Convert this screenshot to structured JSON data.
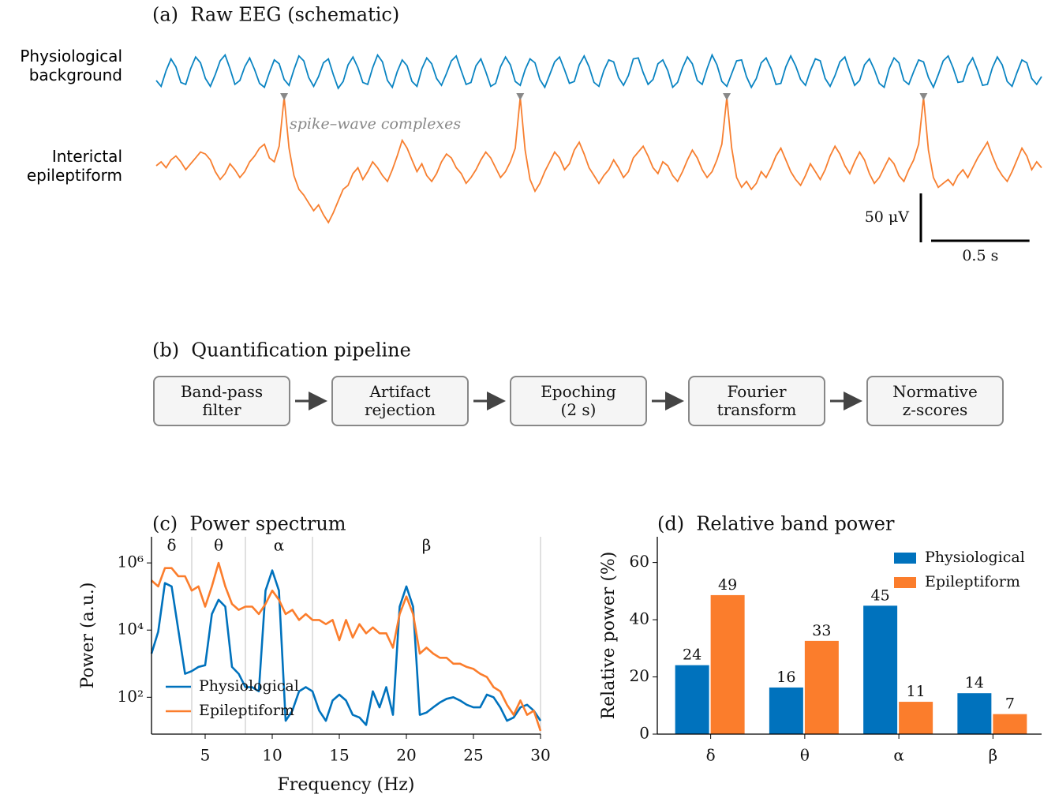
{
  "chart_data": [
    {
      "type": "trace",
      "title": "(a)  Raw EEG (schematic)",
      "x": [
        0,
        0.025,
        0.05,
        0.075,
        0.1,
        0.125,
        0.15,
        0.175,
        0.2,
        0.225,
        0.25,
        0.275,
        0.3,
        0.325,
        0.35,
        0.375,
        0.4,
        0.425,
        0.45,
        0.475,
        0.5,
        0.525,
        0.55,
        0.575,
        0.6,
        0.625,
        0.65,
        0.675,
        0.7,
        0.725,
        0.75,
        0.775,
        0.8,
        0.825,
        0.85,
        0.875,
        0.9,
        0.925,
        0.95,
        0.975,
        1,
        1.025,
        1.05,
        1.075,
        1.1,
        1.125,
        1.15,
        1.175,
        1.2,
        1.225,
        1.25,
        1.275,
        1.3,
        1.325,
        1.35,
        1.375,
        1.4,
        1.425,
        1.45,
        1.475,
        1.5,
        1.525,
        1.55,
        1.575,
        1.6,
        1.625,
        1.65,
        1.675,
        1.7,
        1.725,
        1.75,
        1.775,
        1.8,
        1.825,
        1.85,
        1.875,
        1.9,
        1.925,
        1.95,
        1.975,
        2,
        2.025,
        2.05,
        2.075,
        2.1,
        2.125,
        2.15,
        2.175,
        2.2,
        2.225,
        2.25,
        2.275,
        2.3,
        2.325,
        2.35,
        2.375,
        2.4,
        2.425,
        2.45,
        2.475,
        2.5,
        2.525,
        2.55,
        2.575,
        2.6,
        2.625,
        2.65,
        2.675,
        2.7,
        2.725,
        2.75,
        2.775,
        2.8,
        2.825,
        2.85,
        2.875,
        2.9,
        2.925,
        2.95,
        2.975,
        3,
        3.025,
        3.05,
        3.075,
        3.1,
        3.125,
        3.15,
        3.175,
        3.2,
        3.225,
        3.25,
        3.275,
        3.3,
        3.325,
        3.35,
        3.375,
        3.4,
        3.425,
        3.45,
        3.475,
        3.5,
        3.525,
        3.55,
        3.575,
        3.6,
        3.625,
        3.65,
        3.675,
        3.7,
        3.725,
        3.75,
        3.775,
        3.8,
        3.825,
        3.85,
        3.875,
        3.9,
        3.925,
        3.95,
        3.975,
        4,
        4.025,
        4.05,
        4.075,
        4.1,
        4.125,
        4.15,
        4.175,
        4.2,
        4.225,
        4.25,
        4.275,
        4.3,
        4.325,
        4.35,
        4.375,
        4.4,
        4.425,
        4.45,
        4.475,
        4.5
      ],
      "series": [
        {
          "name": "Physiological background",
          "color": "#0a84c2",
          "values": [
            -8,
            -14,
            2,
            14,
            6,
            -10,
            -12,
            4,
            16,
            10,
            -6,
            -14,
            -2,
            12,
            18,
            4,
            -12,
            -8,
            6,
            15,
            3,
            -11,
            -15,
            0,
            13,
            9,
            -7,
            -13,
            3,
            17,
            12,
            -5,
            -14,
            -4,
            10,
            14,
            -2,
            -16,
            -9,
            8,
            16,
            5,
            -10,
            -12,
            5,
            18,
            11,
            -8,
            -15,
            1,
            13,
            7,
            -9,
            -14,
            4,
            15,
            9,
            -6,
            -13,
            -1,
            12,
            17,
            2,
            -12,
            -10,
            7,
            14,
            1,
            -14,
            -11,
            6,
            16,
            8,
            -9,
            -13,
            3,
            14,
            10,
            -7,
            -15,
            -2,
            11,
            16,
            3,
            -11,
            -9,
            8,
            17,
            6,
            -10,
            -14,
            2,
            13,
            11,
            -5,
            -13,
            -3,
            14,
            15,
            0,
            -12,
            -7,
            9,
            13,
            2,
            -15,
            -10,
            5,
            16,
            9,
            -8,
            -12,
            4,
            18,
            8,
            -9,
            -14,
            -1,
            12,
            13,
            -4,
            -15,
            -6,
            10,
            15,
            4,
            -12,
            -11,
            6,
            17,
            7,
            -7,
            -13,
            2,
            14,
            12,
            -6,
            -14,
            -3,
            11,
            16,
            1,
            -13,
            -8,
            8,
            14,
            3,
            -11,
            -15,
            4,
            15,
            10,
            -8,
            -12,
            1,
            13,
            11,
            -5,
            -15,
            -2,
            12,
            17,
            5,
            -10,
            -9,
            7,
            15,
            2,
            -13,
            -12,
            5,
            16,
            8,
            -9,
            -14,
            0,
            13,
            10,
            -6,
            -12,
            -4
          ]
        },
        {
          "name": "Interictal epileptiform",
          "color": "#f77f30",
          "values": [
            0,
            4,
            -2,
            6,
            10,
            4,
            -4,
            2,
            8,
            14,
            12,
            6,
            -6,
            -14,
            -8,
            2,
            -4,
            -12,
            -6,
            4,
            10,
            18,
            22,
            8,
            4,
            20,
            70,
            18,
            -10,
            -24,
            -30,
            -38,
            -46,
            -40,
            -50,
            -58,
            -48,
            -36,
            -24,
            -20,
            -8,
            -2,
            -14,
            -6,
            4,
            -2,
            -10,
            -16,
            -4,
            10,
            26,
            18,
            6,
            -6,
            2,
            -10,
            -16,
            -8,
            4,
            12,
            8,
            -2,
            -8,
            -18,
            -12,
            -4,
            6,
            14,
            8,
            -2,
            -12,
            -6,
            4,
            18,
            70,
            16,
            -14,
            -26,
            -18,
            -6,
            4,
            14,
            8,
            -4,
            2,
            16,
            24,
            12,
            -2,
            -10,
            -18,
            -10,
            -4,
            6,
            -2,
            -12,
            -6,
            8,
            14,
            20,
            10,
            -2,
            -8,
            4,
            0,
            -10,
            -16,
            -6,
            6,
            16,
            8,
            -4,
            -12,
            -6,
            6,
            22,
            70,
            18,
            -12,
            -22,
            -16,
            -24,
            -18,
            -6,
            -12,
            -2,
            10,
            18,
            6,
            -6,
            -14,
            -20,
            -10,
            2,
            -6,
            -14,
            -4,
            10,
            20,
            12,
            0,
            -8,
            4,
            14,
            6,
            -8,
            -18,
            -12,
            -2,
            8,
            2,
            -10,
            -16,
            -4,
            6,
            22,
            70,
            16,
            -12,
            -22,
            -18,
            -14,
            -20,
            -10,
            -4,
            -12,
            -2,
            8,
            16,
            24,
            10,
            -2,
            -10,
            -16,
            -6,
            6,
            18,
            10,
            -4,
            4,
            -2
          ]
        }
      ],
      "markers_x": [
        0.65,
        1.85,
        2.9,
        3.9
      ],
      "annotation": "spike–wave complexes",
      "scalebar": {
        "y": {
          "value": 50,
          "label": "50 μV"
        },
        "x": {
          "value": 0.5,
          "label": "0.5 s"
        }
      }
    },
    {
      "type": "line",
      "title": "(c)  Power spectrum",
      "xlabel": "Frequency (Hz)",
      "ylabel": "Power (a.u.)",
      "x": [
        1,
        1.5,
        2,
        2.5,
        3,
        3.5,
        4,
        4.5,
        5,
        5.5,
        6,
        6.5,
        7,
        7.5,
        8,
        8.5,
        9,
        9.5,
        10,
        10.5,
        11,
        11.5,
        12,
        12.5,
        13,
        13.5,
        14,
        14.5,
        15,
        15.5,
        16,
        16.5,
        17,
        17.5,
        18,
        18.5,
        19,
        19.5,
        20,
        20.5,
        21,
        21.5,
        22,
        22.5,
        23,
        23.5,
        24,
        24.5,
        25,
        25.5,
        26,
        26.5,
        27,
        27.5,
        28,
        28.5,
        29,
        29.5,
        30
      ],
      "series": [
        {
          "name": "Physiological",
          "color": "#0072bd",
          "values": [
            2000,
            9000,
            250000,
            200000,
            10000,
            500,
            600,
            800,
            900,
            30000,
            80000,
            50000,
            800,
            500,
            200,
            200,
            150,
            150000,
            600000,
            150000,
            20,
            40,
            150,
            200,
            150,
            40,
            20,
            80,
            120,
            80,
            30,
            25,
            15,
            150,
            50,
            200,
            30,
            50000,
            200000,
            50000,
            30,
            35,
            50,
            70,
            90,
            100,
            80,
            60,
            50,
            50,
            120,
            100,
            50,
            20,
            25,
            50,
            60,
            40,
            20
          ]
        },
        {
          "name": "Epileptiform",
          "color": "#fb7d2c",
          "values": [
            300000,
            200000,
            700000,
            700000,
            400000,
            400000,
            150000,
            200000,
            50000,
            200000,
            1000000,
            200000,
            60000,
            40000,
            50000,
            50000,
            30000,
            60000,
            150000,
            80000,
            30000,
            40000,
            20000,
            30000,
            20000,
            20000,
            15000,
            20000,
            5000,
            20000,
            6000,
            15000,
            8000,
            12000,
            8000,
            8000,
            3000,
            30000,
            100000,
            30000,
            2000,
            3000,
            2000,
            1500,
            1500,
            1000,
            1000,
            800,
            700,
            500,
            400,
            200,
            150,
            60,
            30,
            80,
            30,
            40,
            10
          ]
        }
      ],
      "xlim": [
        1,
        30
      ],
      "ylim": [
        8,
        6000000
      ],
      "yscale": "log",
      "xticks": [
        5,
        10,
        15,
        20,
        25,
        30
      ],
      "yticks": [
        {
          "value": 100,
          "label": "10²"
        },
        {
          "value": 10000,
          "label": "10⁴"
        },
        {
          "value": 1000000,
          "label": "10⁶"
        }
      ],
      "legend": "lower left",
      "bands": {
        "edges": [
          1,
          4,
          8,
          13,
          30
        ],
        "labels": [
          "δ",
          "θ",
          "α",
          "β"
        ]
      }
    },
    {
      "type": "bar",
      "title": "(d)  Relative band power",
      "ylabel": "Relative power (%)",
      "categories": [
        "δ",
        "θ",
        "α",
        "β"
      ],
      "series": [
        {
          "name": "Physiological",
          "color": "#0072bd",
          "values": [
            24.1,
            16.3,
            44.9,
            14.3
          ],
          "value_labels": [
            "24",
            "16",
            "45",
            "14"
          ]
        },
        {
          "name": "Epileptiform",
          "color": "#fb7d2c",
          "values": [
            48.6,
            32.6,
            11.3,
            7.0
          ],
          "value_labels": [
            "49",
            "33",
            "11",
            "7"
          ]
        }
      ],
      "ylim": [
        0,
        69
      ],
      "yticks": [
        0,
        20,
        40,
        60
      ],
      "legend": "upper right"
    }
  ],
  "pipeline": {
    "title": "(b)  Quantification pipeline",
    "steps": [
      "Band-pass\nfilter",
      "Artifact\nrejection",
      "Epoching\n(2 s)",
      "Fourier\ntransform",
      "Normative\nz-scores"
    ]
  }
}
